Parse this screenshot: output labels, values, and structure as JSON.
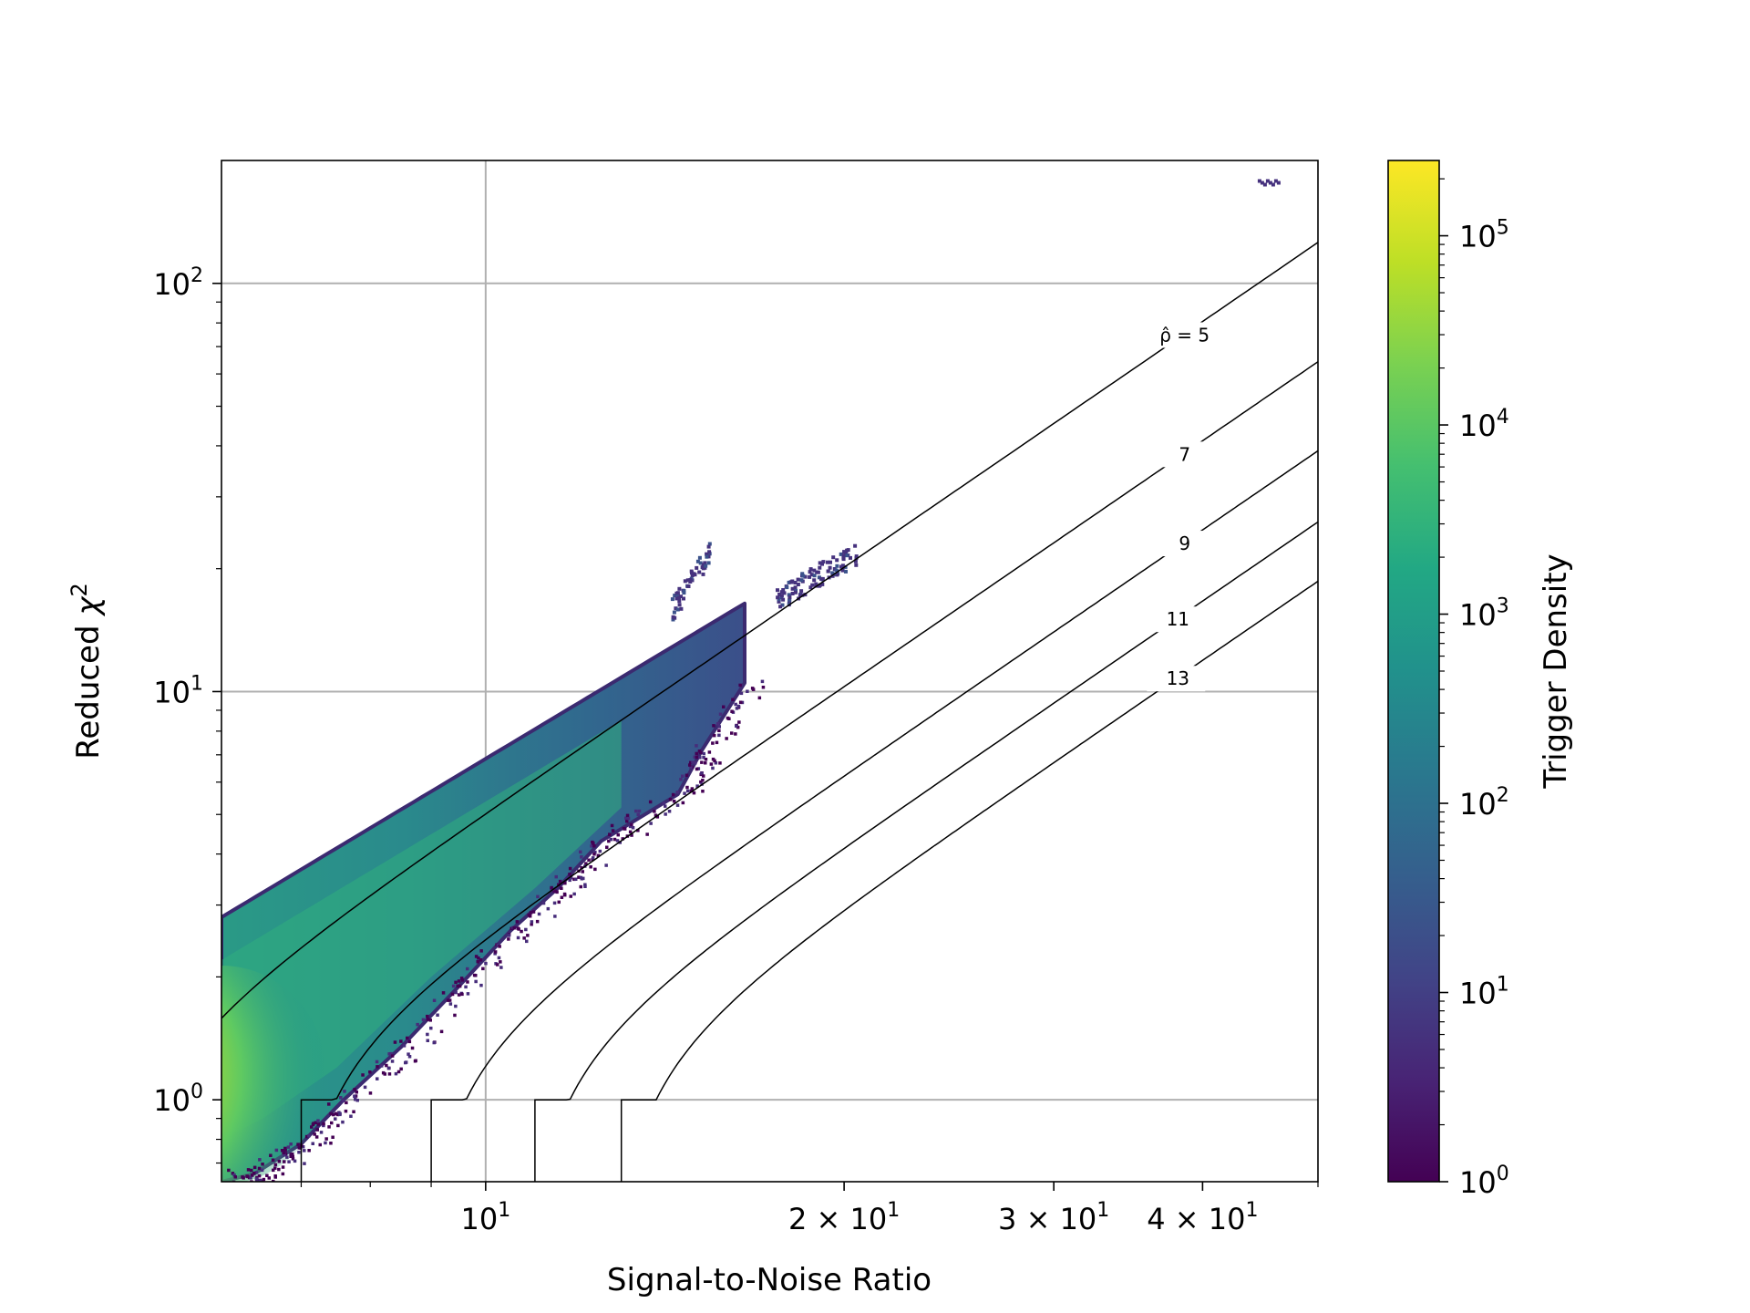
{
  "chart_data": {
    "type": "heatmap",
    "subtype": "hexbin",
    "title": "",
    "xlabel": "Signal-to-Noise Ratio",
    "ylabel": "Reduced χ²",
    "x_scale": "log",
    "y_scale": "log",
    "xlim": [
      6.0,
      50.0
    ],
    "ylim": [
      0.63,
      200
    ],
    "grid": true,
    "x_ticks": [
      {
        "value": 10,
        "mantissa": "",
        "exp": "1"
      },
      {
        "value": 20,
        "mantissa": "2 × ",
        "exp": "1"
      },
      {
        "value": 30,
        "mantissa": "3 × ",
        "exp": "1"
      },
      {
        "value": 40,
        "mantissa": "4 × ",
        "exp": "1"
      }
    ],
    "y_ticks": [
      {
        "value": 1,
        "exp": "0"
      },
      {
        "value": 10,
        "exp": "1"
      },
      {
        "value": 100,
        "exp": "2"
      }
    ],
    "colorbar": {
      "label": "Trigger Density",
      "colormap": "viridis",
      "scale": "log",
      "range": [
        1,
        250000
      ],
      "ticks": [
        {
          "value": 1,
          "exp": "0"
        },
        {
          "value": 10,
          "exp": "1"
        },
        {
          "value": 100,
          "exp": "2"
        },
        {
          "value": 1000,
          "exp": "3"
        },
        {
          "value": 10000,
          "exp": "4"
        },
        {
          "value": 100000,
          "exp": "5"
        }
      ]
    },
    "contours": [
      {
        "rho": 5,
        "label": "ρ̂ = 5",
        "label_x": 38.5
      },
      {
        "rho": 7,
        "label": "7",
        "label_x": 38.5
      },
      {
        "rho": 9,
        "label": "9",
        "label_x": 38.5
      },
      {
        "rho": 11,
        "label": "11",
        "label_x": 38.0
      },
      {
        "rho": 13,
        "label": "13",
        "label_x": 38.0
      }
    ],
    "density_regions": [
      {
        "name": "main-band",
        "x_range": [
          6.0,
          16.5
        ],
        "upper_chi2_at_x6": 2.8,
        "lower_chi2_at_x6": 0.63
      },
      {
        "name": "island-a",
        "x": [
          14.3,
          15.4
        ],
        "chi2": [
          16,
          22
        ]
      },
      {
        "name": "island-b",
        "x": [
          17.5,
          20.5
        ],
        "chi2": [
          17,
          22
        ]
      },
      {
        "name": "outlier",
        "x": [
          44.5,
          46.0
        ],
        "chi2": [
          170,
          180
        ]
      }
    ]
  }
}
